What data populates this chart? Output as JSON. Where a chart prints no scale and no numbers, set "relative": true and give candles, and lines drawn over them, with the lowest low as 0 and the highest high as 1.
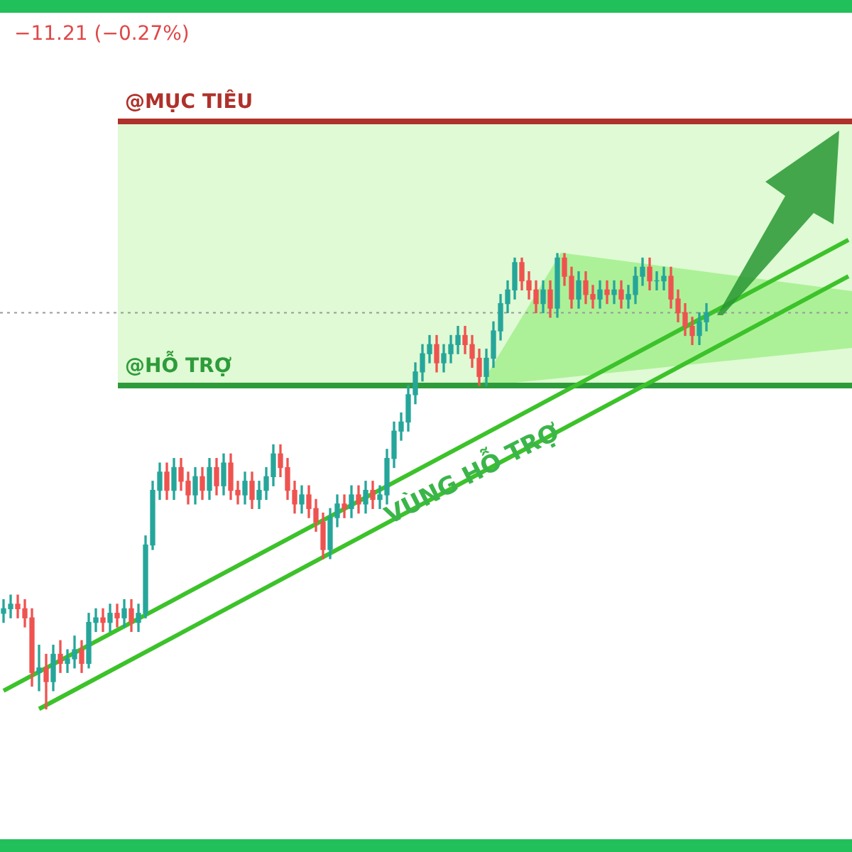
{
  "chart_data": {
    "type": "candlestick",
    "relative": true,
    "legend": false,
    "grid": false,
    "tick_labels": false,
    "categories": [
      null,
      null,
      null,
      null,
      null,
      null,
      null,
      null,
      null,
      null,
      null,
      null,
      null,
      null,
      null,
      null,
      null,
      null,
      null,
      null,
      null,
      null,
      null,
      null,
      null,
      null,
      null,
      null,
      null,
      null,
      null,
      null,
      null,
      null,
      null,
      null,
      null,
      null,
      null,
      null,
      null,
      null,
      null,
      null,
      null,
      null,
      null,
      null,
      null,
      null,
      null,
      null,
      null,
      null,
      null,
      null,
      null,
      null,
      null,
      null,
      null,
      null,
      null,
      null,
      null,
      null,
      null,
      null,
      null,
      null,
      null,
      null,
      null,
      null,
      null,
      null,
      null,
      null,
      null,
      null,
      null,
      null,
      null,
      null,
      null,
      null,
      null,
      null,
      null,
      null,
      null,
      null,
      null,
      null,
      null,
      null,
      null,
      null,
      null,
      null,
      null,
      null,
      null,
      null,
      null,
      null,
      null,
      null,
      null,
      null,
      null,
      null,
      null,
      null,
      null,
      null,
      null,
      null,
      null,
      null
    ],
    "ohlc": [
      [
        0.21,
        0.24,
        0.19,
        0.22
      ],
      [
        0.22,
        0.25,
        0.2,
        0.23
      ],
      [
        0.23,
        0.25,
        0.2,
        0.22
      ],
      [
        0.22,
        0.24,
        0.18,
        0.2
      ],
      [
        0.2,
        0.22,
        0.05,
        0.08
      ],
      [
        0.08,
        0.14,
        0.04,
        0.09
      ],
      [
        0.09,
        0.12,
        0,
        0.06
      ],
      [
        0.06,
        0.14,
        0.04,
        0.12
      ],
      [
        0.12,
        0.15,
        0.08,
        0.1
      ],
      [
        0.1,
        0.13,
        0.08,
        0.11
      ],
      [
        0.11,
        0.16,
        0.09,
        0.13
      ],
      [
        0.13,
        0.15,
        0.08,
        0.1
      ],
      [
        0.1,
        0.21,
        0.09,
        0.19
      ],
      [
        0.19,
        0.22,
        0.17,
        0.2
      ],
      [
        0.2,
        0.22,
        0.17,
        0.19
      ],
      [
        0.19,
        0.23,
        0.17,
        0.21
      ],
      [
        0.21,
        0.23,
        0.18,
        0.2
      ],
      [
        0.2,
        0.24,
        0.18,
        0.22
      ],
      [
        0.22,
        0.24,
        0.17,
        0.19
      ],
      [
        0.19,
        0.23,
        0.17,
        0.21
      ],
      [
        0.21,
        0.38,
        0.2,
        0.36
      ],
      [
        0.36,
        0.5,
        0.35,
        0.48
      ],
      [
        0.48,
        0.54,
        0.46,
        0.52
      ],
      [
        0.52,
        0.54,
        0.46,
        0.48
      ],
      [
        0.48,
        0.55,
        0.46,
        0.53
      ],
      [
        0.53,
        0.55,
        0.48,
        0.5
      ],
      [
        0.5,
        0.52,
        0.45,
        0.47
      ],
      [
        0.47,
        0.53,
        0.45,
        0.51
      ],
      [
        0.51,
        0.53,
        0.46,
        0.48
      ],
      [
        0.48,
        0.55,
        0.46,
        0.53
      ],
      [
        0.53,
        0.55,
        0.47,
        0.49
      ],
      [
        0.49,
        0.56,
        0.47,
        0.54
      ],
      [
        0.54,
        0.56,
        0.46,
        0.48
      ],
      [
        0.48,
        0.5,
        0.45,
        0.47
      ],
      [
        0.47,
        0.52,
        0.45,
        0.5
      ],
      [
        0.5,
        0.52,
        0.44,
        0.46
      ],
      [
        0.46,
        0.5,
        0.44,
        0.48
      ],
      [
        0.48,
        0.53,
        0.46,
        0.51
      ],
      [
        0.51,
        0.58,
        0.49,
        0.56
      ],
      [
        0.56,
        0.58,
        0.51,
        0.53
      ],
      [
        0.53,
        0.55,
        0.46,
        0.48
      ],
      [
        0.48,
        0.5,
        0.43,
        0.45
      ],
      [
        0.45,
        0.49,
        0.43,
        0.47
      ],
      [
        0.47,
        0.49,
        0.42,
        0.44
      ],
      [
        0.44,
        0.46,
        0.39,
        0.41
      ],
      [
        0.41,
        0.43,
        0.33,
        0.35
      ],
      [
        0.35,
        0.44,
        0.33,
        0.42
      ],
      [
        0.42,
        0.47,
        0.4,
        0.45
      ],
      [
        0.45,
        0.47,
        0.42,
        0.44
      ],
      [
        0.44,
        0.49,
        0.42,
        0.47
      ],
      [
        0.47,
        0.49,
        0.43,
        0.45
      ],
      [
        0.45,
        0.5,
        0.43,
        0.48
      ],
      [
        0.48,
        0.5,
        0.44,
        0.46
      ],
      [
        0.46,
        0.49,
        0.44,
        0.47
      ],
      [
        0.47,
        0.57,
        0.45,
        0.55
      ],
      [
        0.55,
        0.63,
        0.53,
        0.61
      ],
      [
        0.61,
        0.65,
        0.59,
        0.63
      ],
      [
        0.63,
        0.71,
        0.61,
        0.69
      ],
      [
        0.69,
        0.76,
        0.67,
        0.74
      ],
      [
        0.74,
        0.8,
        0.72,
        0.78
      ],
      [
        0.78,
        0.82,
        0.76,
        0.8
      ],
      [
        0.8,
        0.82,
        0.74,
        0.76
      ],
      [
        0.76,
        0.8,
        0.74,
        0.78
      ],
      [
        0.78,
        0.82,
        0.76,
        0.8
      ],
      [
        0.8,
        0.84,
        0.78,
        0.82
      ],
      [
        0.82,
        0.84,
        0.78,
        0.8
      ],
      [
        0.8,
        0.82,
        0.75,
        0.77
      ],
      [
        0.77,
        0.79,
        0.71,
        0.73
      ],
      [
        0.73,
        0.79,
        0.71,
        0.77
      ],
      [
        0.77,
        0.85,
        0.75,
        0.83
      ],
      [
        0.83,
        0.91,
        0.81,
        0.89
      ],
      [
        0.89,
        0.94,
        0.87,
        0.92
      ],
      [
        0.92,
        0.99,
        0.9,
        0.98
      ],
      [
        0.98,
        0.99,
        0.92,
        0.94
      ],
      [
        0.94,
        0.96,
        0.9,
        0.92
      ],
      [
        0.92,
        0.94,
        0.87,
        0.89
      ],
      [
        0.89,
        0.94,
        0.87,
        0.92
      ],
      [
        0.92,
        0.94,
        0.86,
        0.88
      ],
      [
        0.88,
        1,
        0.86,
        0.99
      ],
      [
        0.99,
        1,
        0.93,
        0.95
      ],
      [
        0.95,
        0.97,
        0.88,
        0.9
      ],
      [
        0.9,
        0.96,
        0.88,
        0.94
      ],
      [
        0.94,
        0.96,
        0.89,
        0.91
      ],
      [
        0.91,
        0.93,
        0.88,
        0.9
      ],
      [
        0.9,
        0.94,
        0.88,
        0.92
      ],
      [
        0.92,
        0.94,
        0.89,
        0.91
      ],
      [
        0.91,
        0.94,
        0.89,
        0.92
      ],
      [
        0.92,
        0.94,
        0.88,
        0.9
      ],
      [
        0.9,
        0.93,
        0.88,
        0.91
      ],
      [
        0.91,
        0.97,
        0.89,
        0.95
      ],
      [
        0.95,
        0.99,
        0.93,
        0.97
      ],
      [
        0.97,
        0.99,
        0.92,
        0.94
      ],
      [
        0.94,
        0.96,
        0.92,
        0.94
      ],
      [
        0.94,
        0.97,
        0.92,
        0.95
      ],
      [
        0.95,
        0.97,
        0.88,
        0.9
      ],
      [
        0.9,
        0.92,
        0.85,
        0.87
      ],
      [
        0.87,
        0.89,
        0.82,
        0.84
      ],
      [
        0.84,
        0.86,
        0.8,
        0.82
      ],
      [
        0.82,
        0.87,
        0.8,
        0.85
      ],
      [
        0.85,
        0.89,
        0.83,
        0.87
      ],
      null,
      null,
      null,
      null,
      null,
      null,
      null,
      null,
      null,
      null,
      null,
      null,
      null,
      null,
      null,
      null,
      null,
      null,
      null,
      null
    ],
    "colors": [
      "#26a69a",
      "#26a69a",
      "#ef5350",
      "#ef5350",
      "#ef5350",
      "#26a69a",
      "#ef5350",
      "#26a69a",
      "#ef5350",
      "#26a69a",
      "#26a69a",
      "#ef5350",
      "#26a69a",
      "#26a69a",
      "#ef5350",
      "#26a69a",
      "#ef5350",
      "#26a69a",
      "#ef5350",
      "#26a69a",
      "#26a69a",
      "#26a69a",
      "#26a69a",
      "#ef5350",
      "#26a69a",
      "#ef5350",
      "#ef5350",
      "#26a69a",
      "#ef5350",
      "#26a69a",
      "#ef5350",
      "#26a69a",
      "#ef5350",
      "#ef5350",
      "#26a69a",
      "#ef5350",
      "#26a69a",
      "#26a69a",
      "#26a69a",
      "#ef5350",
      "#ef5350",
      "#ef5350",
      "#26a69a",
      "#ef5350",
      "#ef5350",
      "#ef5350",
      "#26a69a",
      "#26a69a",
      "#ef5350",
      "#26a69a",
      "#ef5350",
      "#26a69a",
      "#ef5350",
      "#26a69a",
      "#26a69a",
      "#26a69a",
      "#26a69a",
      "#26a69a",
      "#26a69a",
      "#26a69a",
      "#26a69a",
      "#ef5350",
      "#26a69a",
      "#26a69a",
      "#26a69a",
      "#ef5350",
      "#ef5350",
      "#ef5350",
      "#26a69a",
      "#26a69a",
      "#26a69a",
      "#26a69a",
      "#26a69a",
      "#ef5350",
      "#ef5350",
      "#ef5350",
      "#26a69a",
      "#ef5350",
      "#26a69a",
      "#ef5350",
      "#ef5350",
      "#26a69a",
      "#ef5350",
      "#ef5350",
      "#26a69a",
      "#ef5350",
      "#26a69a",
      "#ef5350",
      "#26a69a",
      "#26a69a",
      "#26a69a",
      "#ef5350",
      "#26a69a",
      "#26a69a",
      "#ef5350",
      "#ef5350",
      "#ef5350",
      "#ef5350",
      "#26a69a",
      "#26a69a",
      null,
      null,
      null,
      null,
      null,
      null,
      null,
      null,
      null,
      null,
      null,
      null,
      null,
      null,
      null,
      null,
      null,
      null,
      null,
      null
    ],
    "series": [
      {
        "type": "line",
        "color": "#3cc22a",
        "values": [
          0.04,
          null,
          null,
          null,
          null,
          null,
          null,
          null,
          null,
          null,
          null,
          null,
          null,
          null,
          null,
          null,
          null,
          null,
          null,
          null,
          null,
          null,
          null,
          null,
          null,
          null,
          null,
          null,
          null,
          null,
          null,
          null,
          null,
          null,
          null,
          null,
          null,
          null,
          null,
          null,
          null,
          null,
          null,
          null,
          null,
          null,
          null,
          null,
          null,
          null,
          null,
          null,
          null,
          null,
          null,
          null,
          null,
          null,
          null,
          null,
          null,
          null,
          null,
          null,
          null,
          null,
          null,
          null,
          null,
          null,
          null,
          null,
          null,
          null,
          null,
          null,
          null,
          null,
          null,
          null,
          null,
          null,
          null,
          null,
          null,
          null,
          null,
          null,
          null,
          null,
          null,
          null,
          null,
          null,
          null,
          null,
          null,
          null,
          null,
          null,
          null,
          null,
          null,
          null,
          null,
          null,
          null,
          null,
          null,
          null,
          null,
          null,
          null,
          null,
          null,
          null,
          null,
          null,
          null,
          1.03
        ]
      },
      {
        "type": "line",
        "color": "#3cc22a",
        "values": [
          null,
          null,
          null,
          null,
          null,
          0,
          null,
          null,
          null,
          null,
          null,
          null,
          null,
          null,
          null,
          null,
          null,
          null,
          null,
          null,
          null,
          null,
          null,
          null,
          null,
          null,
          null,
          null,
          null,
          null,
          null,
          null,
          null,
          null,
          null,
          null,
          null,
          null,
          null,
          null,
          null,
          null,
          null,
          null,
          null,
          null,
          null,
          null,
          null,
          null,
          null,
          null,
          null,
          null,
          null,
          null,
          null,
          null,
          null,
          null,
          null,
          null,
          null,
          null,
          null,
          null,
          null,
          null,
          null,
          null,
          null,
          null,
          null,
          null,
          null,
          null,
          null,
          null,
          null,
          null,
          null,
          null,
          null,
          null,
          null,
          null,
          null,
          null,
          null,
          null,
          null,
          null,
          null,
          null,
          null,
          null,
          null,
          null,
          null,
          null,
          null,
          null,
          null,
          null,
          null,
          null,
          null,
          null,
          null,
          null,
          null,
          null,
          null,
          null,
          null,
          null,
          null,
          null,
          null,
          0.95
        ]
      }
    ],
    "bands": [
      {
        "axis": "y",
        "from": 0.71,
        "to": 1.29,
        "color": "#c9f7b8"
      }
    ],
    "ref_lines": [
      {
        "axis": "y",
        "value": 1.29,
        "label": "@MỤC TIÊU",
        "color": "#b0302a"
      },
      {
        "axis": "y",
        "value": 0.71,
        "label": "@HỖ TRỢ",
        "color": "#2e9b3a"
      },
      {
        "axis": "y",
        "value": 0.87,
        "color": "#999999",
        "line_style": "dotted"
      }
    ],
    "annotations": [
      "−11.21 (−0.27%)",
      "VÙNG HỖ TRỢ"
    ]
  }
}
